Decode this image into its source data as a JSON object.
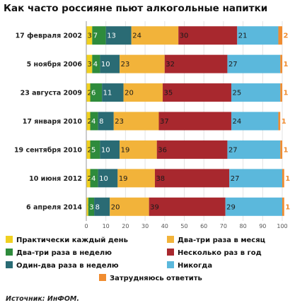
{
  "chart_data": {
    "type": "bar",
    "orientation": "horizontal",
    "stacked": true,
    "title": "Как часто россияне пьют алкогольные напитки",
    "categories": [
      "17 февраля 2002",
      "5 ноября 2006",
      "23 августа 2009",
      "17 января 2010",
      "19 сентября 2010",
      "10 июня 2012",
      "6 апреля 2014"
    ],
    "series": [
      {
        "name": "Практически каждый день",
        "color": "#f0d020",
        "values": [
          3,
          3,
          2,
          2,
          2,
          2,
          1
        ]
      },
      {
        "name": "Два-три раза в неделю",
        "color": "#2e8b3c",
        "values": [
          7,
          4,
          6,
          4,
          5,
          4,
          3
        ]
      },
      {
        "name": "Один-два раза в неделю",
        "color": "#2a6b74",
        "values": [
          13,
          10,
          11,
          8,
          10,
          10,
          8
        ]
      },
      {
        "name": "Два-три раза в месяц",
        "color": "#f2b33a",
        "values": [
          24,
          23,
          20,
          23,
          19,
          19,
          20
        ]
      },
      {
        "name": "Несколько раз в год",
        "color": "#a8282e",
        "values": [
          30,
          32,
          35,
          37,
          36,
          38,
          39
        ]
      },
      {
        "name": "Никогда",
        "color": "#5bb8dc",
        "values": [
          21,
          27,
          25,
          24,
          27,
          27,
          29
        ]
      },
      {
        "name": "Затрудняюсь ответить",
        "color": "#f08c30",
        "values": [
          2,
          1,
          1,
          1,
          1,
          1,
          1
        ]
      }
    ],
    "xlim": [
      0,
      100
    ],
    "xticks": [
      0,
      10,
      20,
      30,
      40,
      50,
      60,
      70,
      80,
      90,
      100
    ],
    "grid": true,
    "legend_position": "bottom"
  },
  "source": "Источник:  ИнФОМ."
}
